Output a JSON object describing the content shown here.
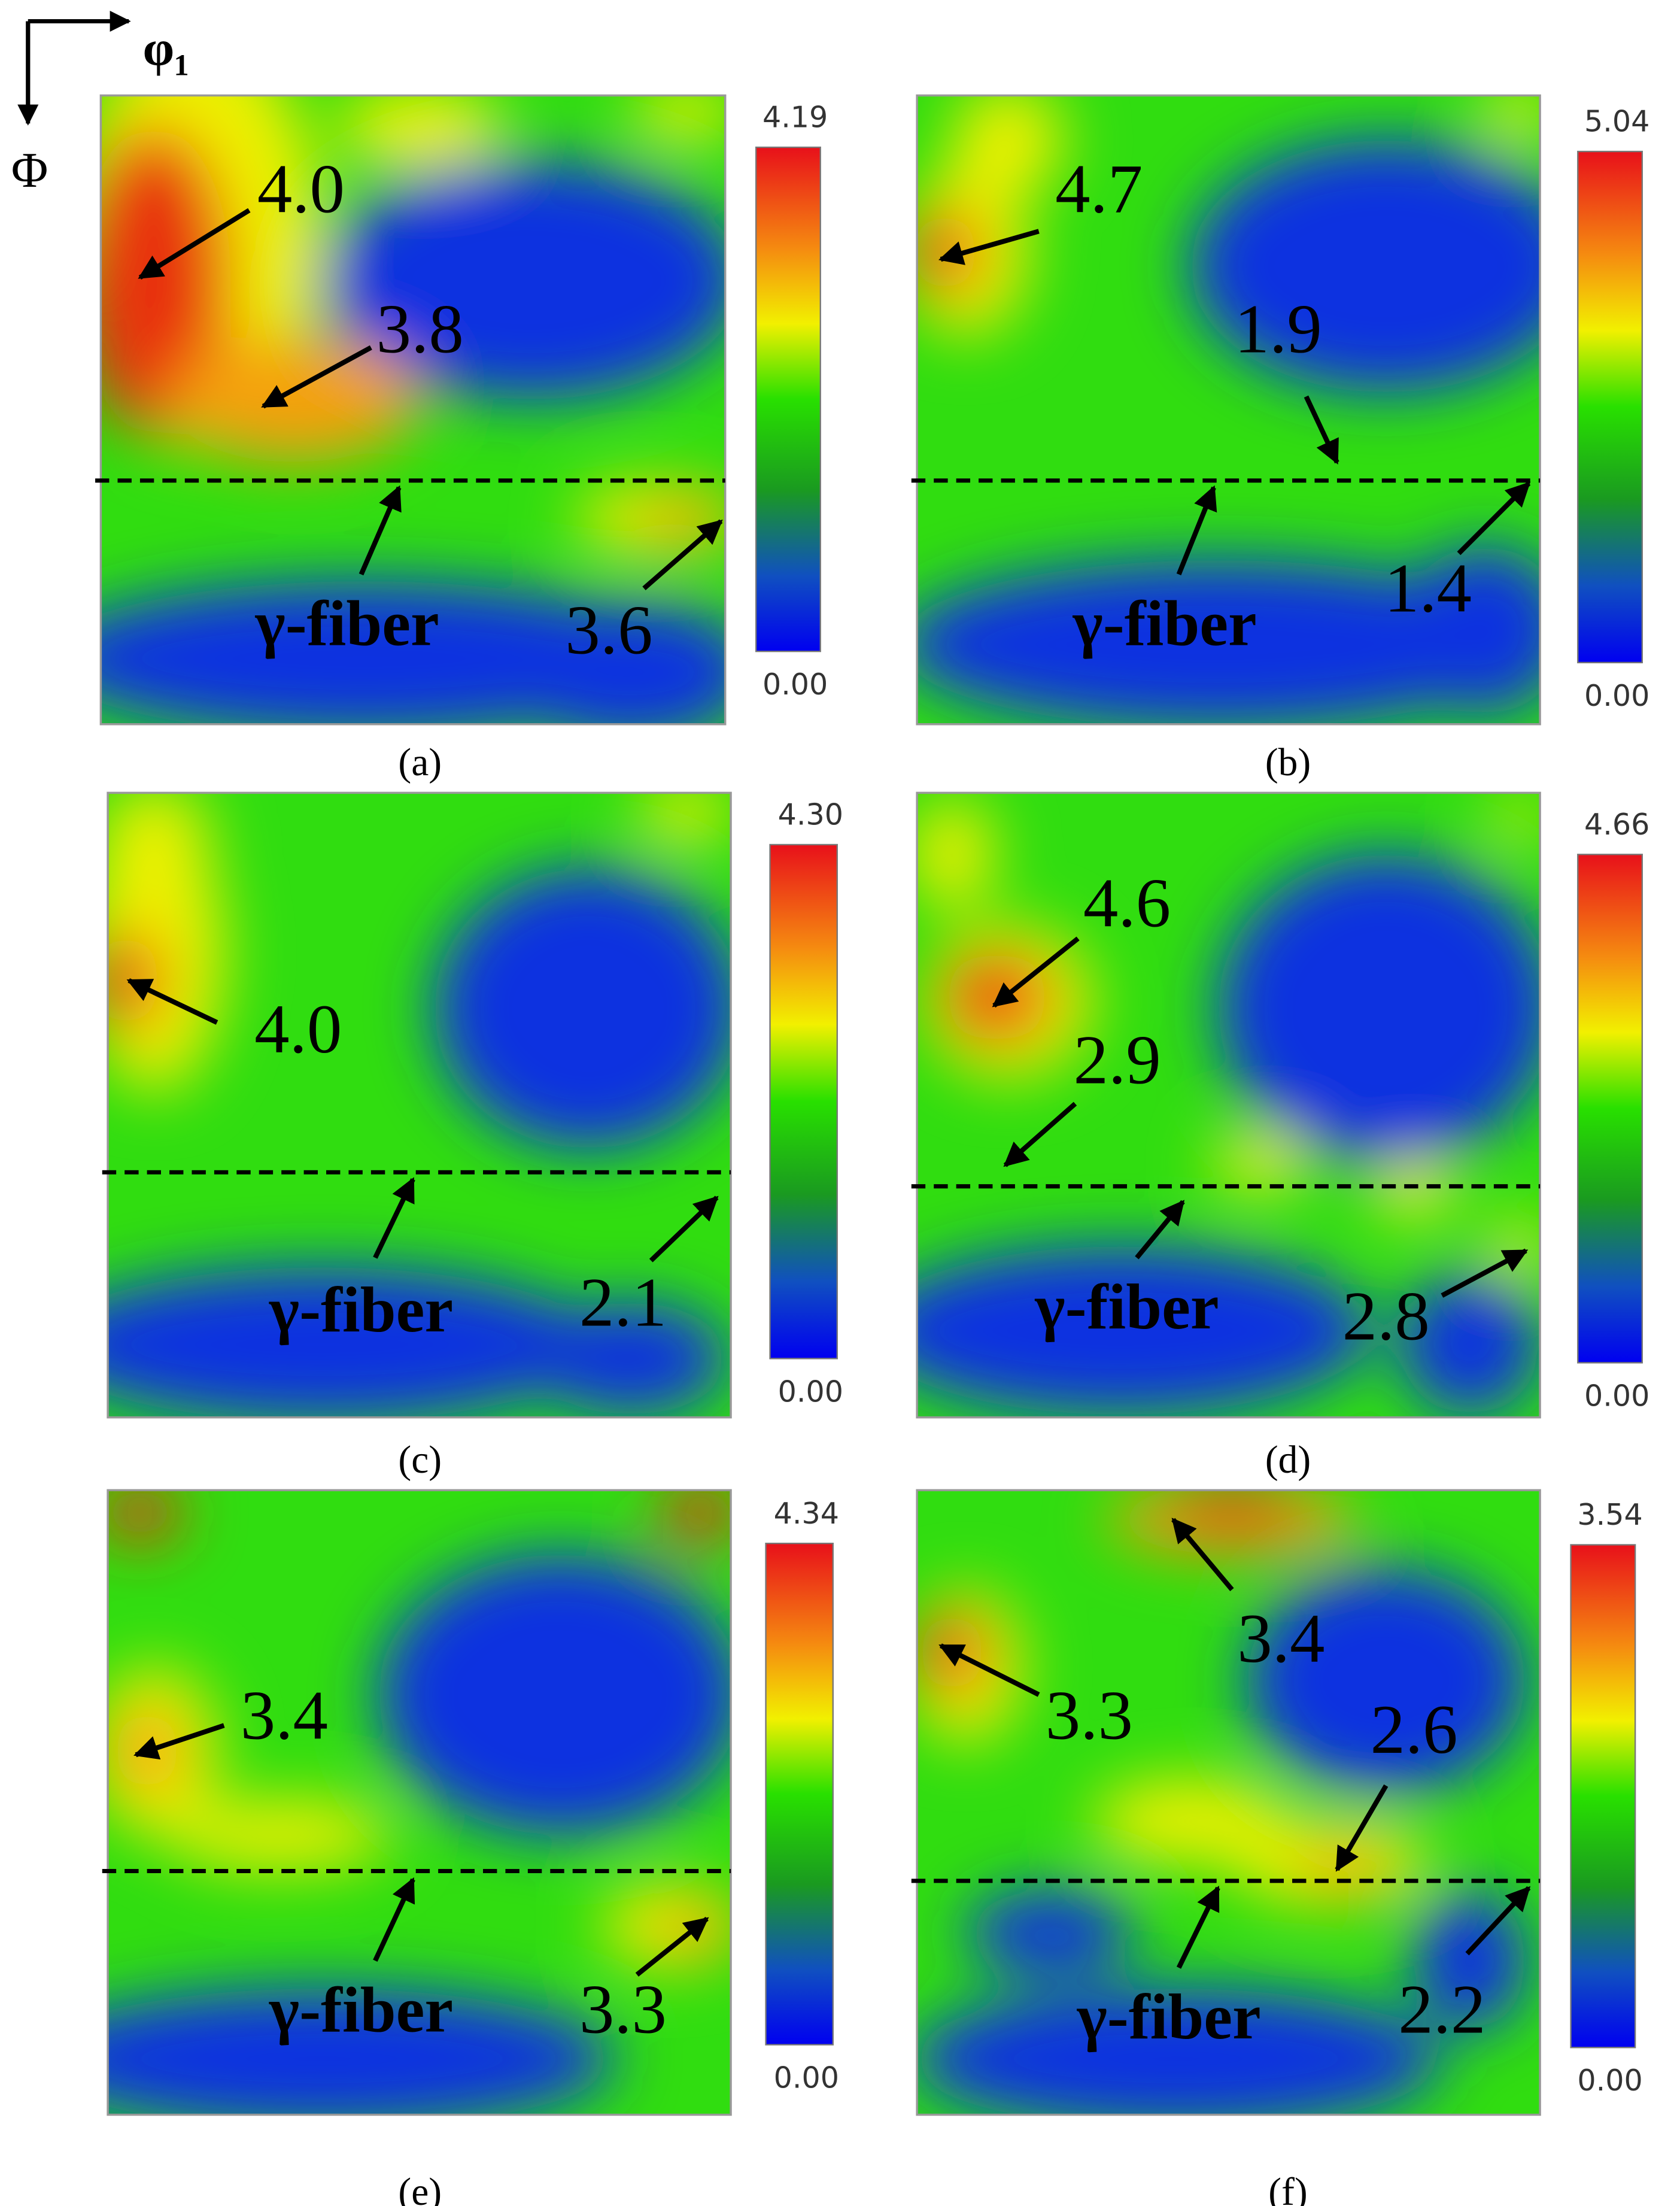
{
  "axes": {
    "horizontal": "φ₁",
    "vertical": "Φ"
  },
  "panels": [
    {
      "label": "(a)",
      "colorbar_max": "4.19",
      "colorbar_min": "0.00",
      "annotations": [
        "4.0",
        "3.8",
        "3.6"
      ],
      "fiber_label": "γ-fiber"
    },
    {
      "label": "(b)",
      "colorbar_max": "5.04",
      "colorbar_min": "0.00",
      "annotations": [
        "4.7",
        "1.9",
        "1.4"
      ],
      "fiber_label": "γ-fiber"
    },
    {
      "label": "(c)",
      "colorbar_max": "4.30",
      "colorbar_min": "0.00",
      "annotations": [
        "4.0",
        "2.1"
      ],
      "fiber_label": "γ-fiber"
    },
    {
      "label": "(d)",
      "colorbar_max": "4.66",
      "colorbar_min": "0.00",
      "annotations": [
        "4.6",
        "2.9",
        "2.8"
      ],
      "fiber_label": "γ-fiber"
    },
    {
      "label": "(e)",
      "colorbar_max": "4.34",
      "colorbar_min": "0.00",
      "annotations": [
        "3.4",
        "3.3"
      ],
      "fiber_label": "γ-fiber"
    },
    {
      "label": "(f)",
      "colorbar_max": "3.54",
      "colorbar_min": "0.00",
      "annotations": [
        "3.4",
        "3.3",
        "2.6",
        "2.2"
      ],
      "fiber_label": "γ-fiber"
    }
  ]
}
